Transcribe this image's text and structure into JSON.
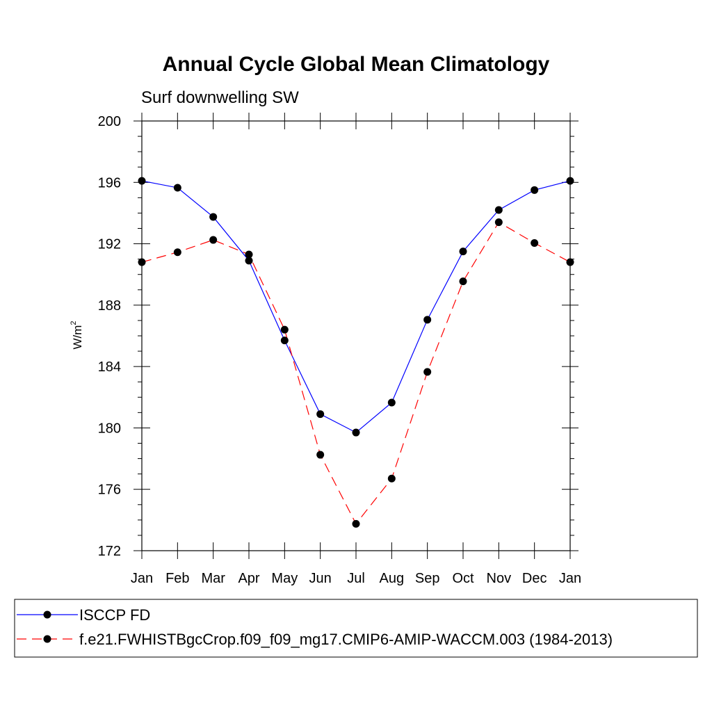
{
  "chart_data": {
    "type": "line",
    "title": "Annual Cycle Global Mean Climatology",
    "subtitle": "Surf downwelling SW",
    "ylabel": "W/m",
    "ylabel_sup": "2",
    "xlabel": "",
    "categories": [
      "Jan",
      "Feb",
      "Mar",
      "Apr",
      "May",
      "Jun",
      "Jul",
      "Aug",
      "Sep",
      "Oct",
      "Nov",
      "Dec",
      "Jan"
    ],
    "ylim": [
      172,
      200
    ],
    "yticks": [
      172,
      176,
      180,
      184,
      188,
      192,
      196,
      200
    ],
    "grid": false,
    "legend_position": "bottom",
    "series": [
      {
        "name": "ISCCP FD",
        "color": "#0000ff",
        "dash": "solid",
        "marker": "circle",
        "values": [
          196.1,
          195.65,
          193.75,
          190.9,
          185.7,
          180.9,
          179.7,
          181.65,
          187.05,
          191.5,
          194.2,
          195.5,
          196.1
        ]
      },
      {
        "name": "f.e21.FWHISTBgcCrop.f09_f09_mg17.CMIP6-AMIP-WACCM.003 (1984-2013)",
        "color": "#ff0000",
        "dash": "dashed",
        "marker": "circle",
        "values": [
          190.8,
          191.45,
          192.25,
          191.3,
          186.4,
          178.25,
          173.75,
          176.7,
          183.65,
          189.55,
          193.4,
          192.05,
          190.8
        ]
      }
    ]
  }
}
